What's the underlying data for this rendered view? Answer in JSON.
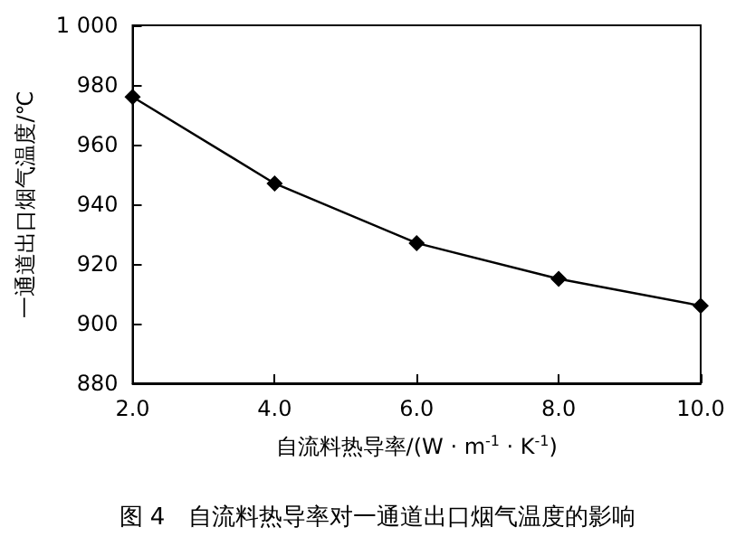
{
  "chart_data": {
    "type": "line",
    "title": "图 4　自流料热导率对一通道出口烟气温度的影响",
    "xlabel": "自流料热导率/(W · m$^{-1}$ · K$^{-1}$)",
    "ylabel": "一通道出口烟气温度/℃",
    "x": [
      2,
      4,
      6,
      8,
      10
    ],
    "series": [
      {
        "color": "#000000",
        "values": [
          976,
          947,
          927,
          915,
          906
        ]
      }
    ],
    "xlim": [
      2,
      10
    ],
    "xticks": [
      {
        "value": 2,
        "label": "2.0"
      },
      {
        "value": 4,
        "label": "4.0"
      },
      {
        "value": 6,
        "label": "6.0"
      },
      {
        "value": 8,
        "label": "8.0"
      },
      {
        "value": 10,
        "label": "10.0"
      }
    ],
    "ylim": [
      880,
      1000
    ],
    "yticks": [
      880,
      900,
      920,
      940,
      960,
      980,
      {
        "value": 1000,
        "label": "1 000"
      }
    ],
    "marker": "diamond",
    "line_style": "solid"
  }
}
